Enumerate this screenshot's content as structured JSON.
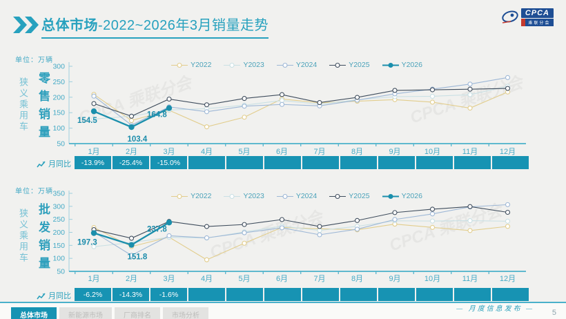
{
  "header": {
    "title_strong": "总体市场",
    "title_rest": "-2022~2026年3月销量走势",
    "logo": {
      "text": "CPCA",
      "sub": "乘联分会"
    }
  },
  "colors": {
    "accent": "#27a1be",
    "axis": "#4ab1ca",
    "tick_text": "#45aac6",
    "mom_cell": "#1793b3",
    "point_label": "#1b8cab"
  },
  "watermark": "CPCA 乘联分会",
  "chart_data": [
    {
      "type": "line",
      "title": "零售销量",
      "category_label": "狭义乘用车",
      "unit": "单位：万辆",
      "categories": [
        "1月",
        "2月",
        "3月",
        "4月",
        "5月",
        "6月",
        "7月",
        "8月",
        "9月",
        "10月",
        "11月",
        "12月"
      ],
      "ylim": [
        50,
        300
      ],
      "yticks": [
        300,
        250,
        200,
        150,
        100,
        50
      ],
      "legend_position": "top",
      "grid": false,
      "series": [
        {
          "name": "Y2022",
          "color": "#e2cd8c",
          "marker": "open",
          "values": [
            209.2,
            124.6,
            157.9,
            104.3,
            135.4,
            194.4,
            181.8,
            187.1,
            192.2,
            184.0,
            164.9,
            216.9
          ]
        },
        {
          "name": "Y2023",
          "color": "#c9e0e4",
          "marker": "open",
          "values": [
            129.3,
            139.0,
            158.7,
            163.0,
            174.2,
            189.4,
            177.5,
            192.0,
            201.8,
            203.0,
            208.1,
            235.3
          ]
        },
        {
          "name": "Y2024",
          "color": "#9db7d6",
          "marker": "open",
          "values": [
            203.5,
            109.8,
            168.7,
            153.2,
            171.0,
            176.7,
            172.0,
            190.5,
            210.9,
            226.1,
            242.3,
            263.5
          ]
        },
        {
          "name": "Y2025",
          "color": "#3e4c5c",
          "marker": "open",
          "values": [
            179.4,
            138.6,
            194.0,
            175.5,
            196.0,
            208.4,
            182.6,
            199.5,
            222.0,
            224.0,
            226.0,
            228.5
          ]
        },
        {
          "name": "Y2026",
          "color": "#1b8fac",
          "marker": "filled",
          "emphasis": true,
          "values": [
            154.5,
            103.4,
            164.8,
            null,
            null,
            null,
            null,
            null,
            null,
            null,
            null,
            null
          ]
        }
      ],
      "point_labels": {
        "series": "Y2026",
        "labels": [
          "154.5",
          "103.4",
          "164.8"
        ]
      },
      "mom_label": "月同比",
      "mom_values": [
        "-13.9%",
        "-25.4%",
        "-15.0%",
        "",
        "",
        "",
        "",
        "",
        "",
        "",
        "",
        ""
      ]
    },
    {
      "type": "line",
      "title": "批发销量",
      "category_label": "狭义乘用车",
      "unit": "单位：万辆",
      "categories": [
        "1月",
        "2月",
        "3月",
        "4月",
        "5月",
        "6月",
        "7月",
        "8月",
        "9月",
        "10月",
        "11月",
        "12月"
      ],
      "ylim": [
        50,
        350
      ],
      "yticks": [
        350,
        300,
        250,
        200,
        150,
        100,
        50
      ],
      "legend_position": "top",
      "grid": false,
      "series": [
        {
          "name": "Y2022",
          "color": "#e2cd8c",
          "marker": "open",
          "values": [
            218.5,
            145.3,
            181.4,
            94.6,
            158.2,
            218.9,
            213.9,
            209.7,
            231.7,
            219.0,
            206.9,
            222.9
          ]
        },
        {
          "name": "Y2023",
          "color": "#c9e0e4",
          "marker": "open",
          "values": [
            144.9,
            160.6,
            181.2,
            178.1,
            201.9,
            223.7,
            207.3,
            223.2,
            244.5,
            243.5,
            244.9,
            242.8
          ]
        },
        {
          "name": "Y2024",
          "color": "#9db7d6",
          "marker": "open",
          "values": [
            201.1,
            111.5,
            187.0,
            178.8,
            198.5,
            217.5,
            190.7,
            212.2,
            249.4,
            270.9,
            297.9,
            306.5
          ]
        },
        {
          "name": "Y2025",
          "color": "#3e4c5c",
          "marker": "open",
          "values": [
            210.5,
            177.3,
            241.9,
            222.5,
            230.2,
            249.1,
            222.5,
            245.5,
            276.0,
            289.0,
            299.0,
            277.0
          ]
        },
        {
          "name": "Y2026",
          "color": "#1b8fac",
          "marker": "filled",
          "emphasis": true,
          "values": [
            197.3,
            151.8,
            237.8,
            null,
            null,
            null,
            null,
            null,
            null,
            null,
            null,
            null
          ]
        }
      ],
      "point_labels": {
        "series": "Y2026",
        "labels": [
          "197.3",
          "151.8",
          "237.8"
        ]
      },
      "mom_label": "月同比",
      "mom_values": [
        "-6.2%",
        "-14.3%",
        "-1.6%",
        "",
        "",
        "",
        "",
        "",
        "",
        "",
        "",
        ""
      ]
    }
  ],
  "footer": {
    "tabs": [
      "总体市场",
      "新能源市场",
      "厂商排名",
      "市场分析"
    ],
    "right_label": "—  月度信息发布  —",
    "page": "5"
  }
}
